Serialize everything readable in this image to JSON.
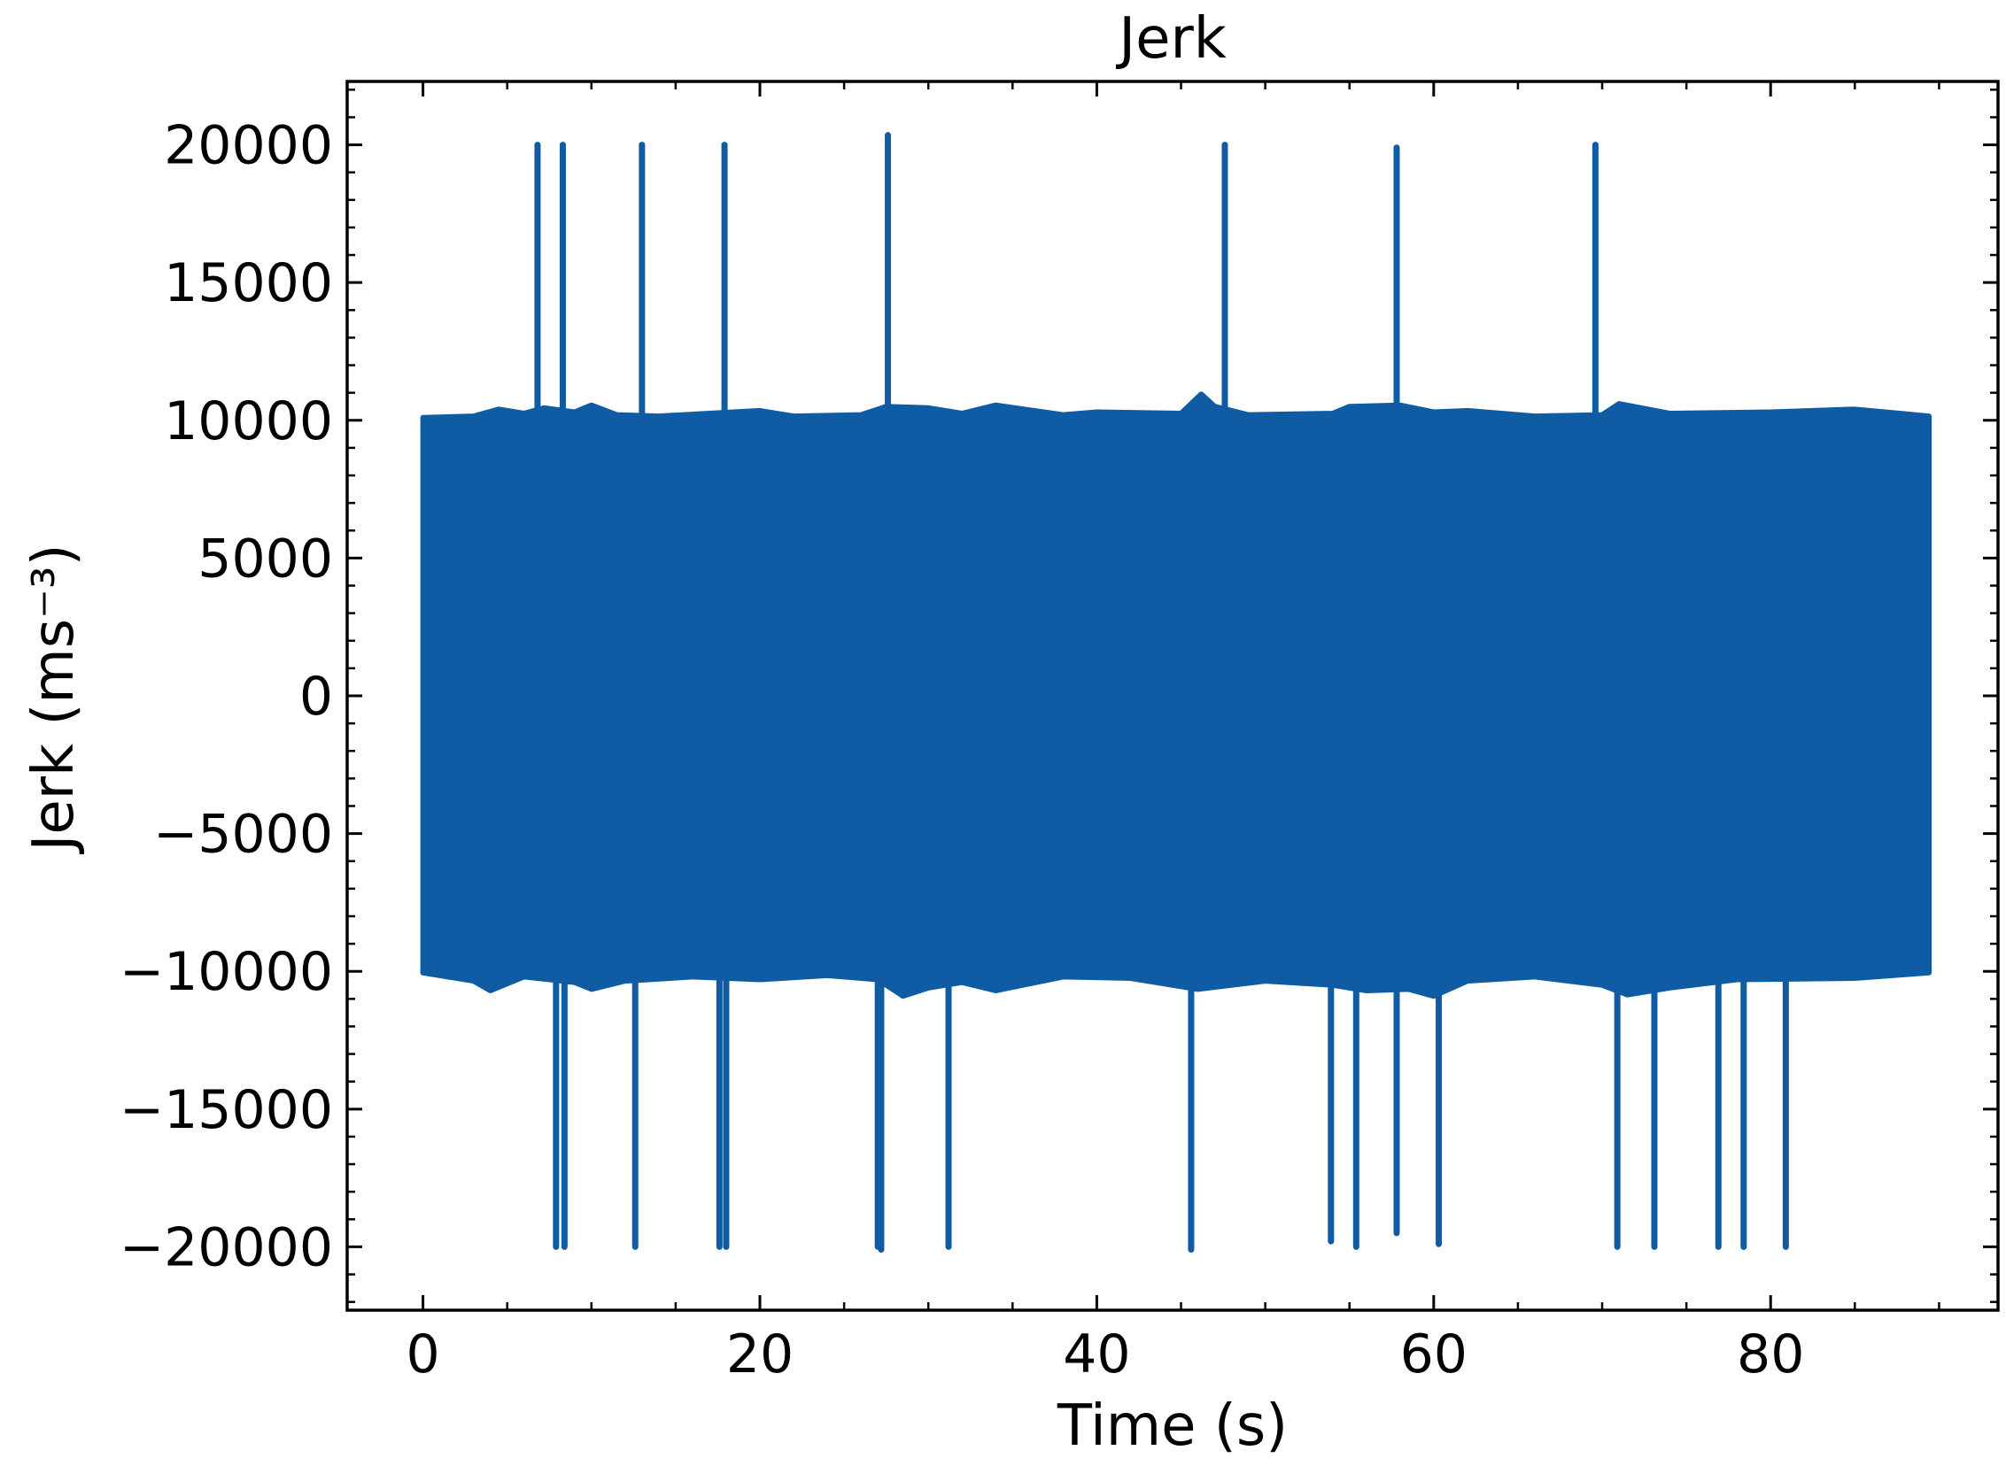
{
  "chart_data": {
    "type": "line",
    "title": "Jerk",
    "xlabel": "Time (s)",
    "ylabel": "Jerk (ms⁻³)",
    "xlim": [
      -4.5,
      93.5
    ],
    "ylim": [
      -22300,
      22300
    ],
    "x_ticks": [
      0,
      20,
      40,
      60,
      80
    ],
    "x_tick_labels": [
      "0",
      "20",
      "40",
      "60",
      "80"
    ],
    "y_ticks": [
      20000,
      15000,
      10000,
      5000,
      0,
      -5000,
      -10000,
      -15000,
      -20000
    ],
    "y_tick_labels": [
      "20000",
      "15000",
      "10000",
      "5000",
      "0",
      "−5000",
      "−10000",
      "−15000",
      "−20000"
    ],
    "x_minor_step": 5,
    "y_minor_step": 1000,
    "grid": false,
    "line_color": "#0f5ca4",
    "series": [
      {
        "band_x": [
          0,
          89.4
        ],
        "upper_envelope": [
          [
            0,
            10100
          ],
          [
            3,
            10150
          ],
          [
            4.5,
            10400
          ],
          [
            6,
            10250
          ],
          [
            7.2,
            10450
          ],
          [
            9,
            10300
          ],
          [
            10,
            10550
          ],
          [
            11.5,
            10200
          ],
          [
            14,
            10150
          ],
          [
            20,
            10350
          ],
          [
            22,
            10150
          ],
          [
            26,
            10200
          ],
          [
            27.5,
            10500
          ],
          [
            30,
            10450
          ],
          [
            32,
            10250
          ],
          [
            34,
            10550
          ],
          [
            38,
            10200
          ],
          [
            40,
            10300
          ],
          [
            45,
            10250
          ],
          [
            46.2,
            10950
          ],
          [
            47,
            10500
          ],
          [
            49,
            10200
          ],
          [
            54,
            10250
          ],
          [
            55,
            10500
          ],
          [
            58,
            10550
          ],
          [
            60,
            10300
          ],
          [
            62,
            10350
          ],
          [
            66,
            10150
          ],
          [
            70,
            10200
          ],
          [
            71,
            10600
          ],
          [
            74,
            10250
          ],
          [
            80,
            10300
          ],
          [
            85,
            10400
          ],
          [
            89.4,
            10150
          ]
        ],
        "lower_envelope": [
          [
            0,
            -10050
          ],
          [
            3,
            -10350
          ],
          [
            4,
            -10700
          ],
          [
            6,
            -10200
          ],
          [
            9,
            -10400
          ],
          [
            10,
            -10650
          ],
          [
            12,
            -10350
          ],
          [
            16,
            -10200
          ],
          [
            20,
            -10300
          ],
          [
            24,
            -10150
          ],
          [
            27,
            -10300
          ],
          [
            28.5,
            -10900
          ],
          [
            30,
            -10600
          ],
          [
            32,
            -10400
          ],
          [
            34,
            -10700
          ],
          [
            38,
            -10200
          ],
          [
            42,
            -10250
          ],
          [
            46,
            -10650
          ],
          [
            50,
            -10350
          ],
          [
            54,
            -10500
          ],
          [
            56,
            -10700
          ],
          [
            58.5,
            -10650
          ],
          [
            60,
            -10900
          ],
          [
            62,
            -10350
          ],
          [
            66,
            -10200
          ],
          [
            70,
            -10500
          ],
          [
            71.5,
            -10850
          ],
          [
            74,
            -10600
          ],
          [
            78,
            -10300
          ],
          [
            85,
            -10250
          ],
          [
            89.4,
            -10050
          ]
        ],
        "spikes": [
          [
            6.8,
            20000
          ],
          [
            7.9,
            -20000
          ],
          [
            8.3,
            20000
          ],
          [
            8.4,
            -20000
          ],
          [
            12.6,
            -20000
          ],
          [
            13.0,
            20000
          ],
          [
            17.6,
            -20000
          ],
          [
            17.9,
            20000
          ],
          [
            18.0,
            -20000
          ],
          [
            27.0,
            -20000
          ],
          [
            27.2,
            -20100
          ],
          [
            27.6,
            20350
          ],
          [
            31.2,
            -20000
          ],
          [
            45.6,
            -20100
          ],
          [
            47.6,
            20000
          ],
          [
            53.9,
            -19800
          ],
          [
            55.4,
            -20000
          ],
          [
            57.8,
            19900
          ],
          [
            57.8,
            -19500
          ],
          [
            60.3,
            -19900
          ],
          [
            69.6,
            20000
          ],
          [
            70.9,
            -20000
          ],
          [
            73.1,
            -20000
          ],
          [
            76.9,
            -20000
          ],
          [
            78.4,
            -20000
          ],
          [
            80.9,
            -20000
          ]
        ]
      }
    ]
  }
}
